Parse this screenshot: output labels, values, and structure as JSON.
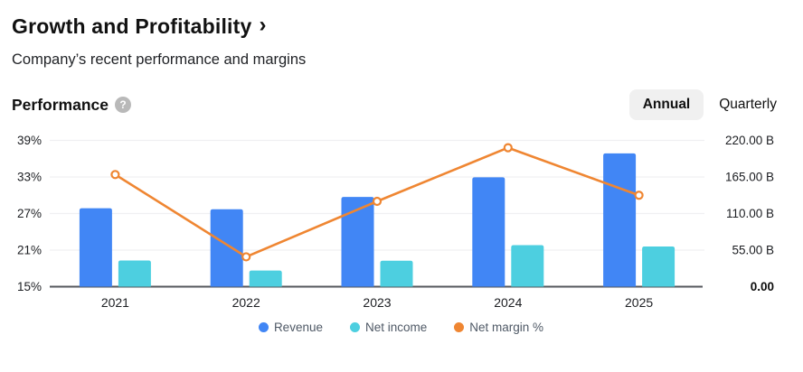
{
  "header": {
    "title": "Growth and Profitability",
    "chevron": "›",
    "subtitle": "Company’s recent performance and margins"
  },
  "section": {
    "title": "Performance",
    "help_icon": "?",
    "toggle": {
      "options": [
        {
          "label": "Annual",
          "selected": true
        },
        {
          "label": "Quarterly",
          "selected": false
        }
      ]
    }
  },
  "chart_data": {
    "type": "bar+line combo",
    "categories": [
      "2021",
      "2022",
      "2023",
      "2024",
      "2025"
    ],
    "series": [
      {
        "name": "Revenue",
        "type": "bar",
        "axis": "right",
        "color": "#4186f5",
        "values": [
          117.9,
          116.5,
          134.9,
          164.5,
          200.4
        ]
      },
      {
        "name": "Net income",
        "type": "bar",
        "axis": "right",
        "color": "#4dcfe0",
        "values": [
          39.4,
          24.3,
          39.1,
          62.4,
          60.5
        ]
      },
      {
        "name": "Net margin %",
        "type": "line",
        "axis": "left",
        "color": "#ef8632",
        "values": [
          33.4,
          19.9,
          29.0,
          37.8,
          30.0
        ]
      }
    ],
    "left_axis": {
      "unit": "%",
      "min": 15,
      "max": 39,
      "ticks": [
        "39%",
        "33%",
        "27%",
        "21%",
        "15%"
      ]
    },
    "right_axis": {
      "unit": "B",
      "min": 0,
      "max": 220,
      "ticks": [
        "220.00 B",
        "165.00 B",
        "110.00 B",
        "55.00 B",
        "0.00"
      ]
    },
    "grid": true,
    "legend_position": "bottom",
    "grid_color": "#f0f0f2",
    "axis_line_color": "#54575c"
  },
  "legend": {
    "items": [
      {
        "label": "Revenue",
        "color": "#4186f5"
      },
      {
        "label": "Net income",
        "color": "#4dcfe0"
      },
      {
        "label": "Net margin %",
        "color": "#ef8632"
      }
    ]
  }
}
